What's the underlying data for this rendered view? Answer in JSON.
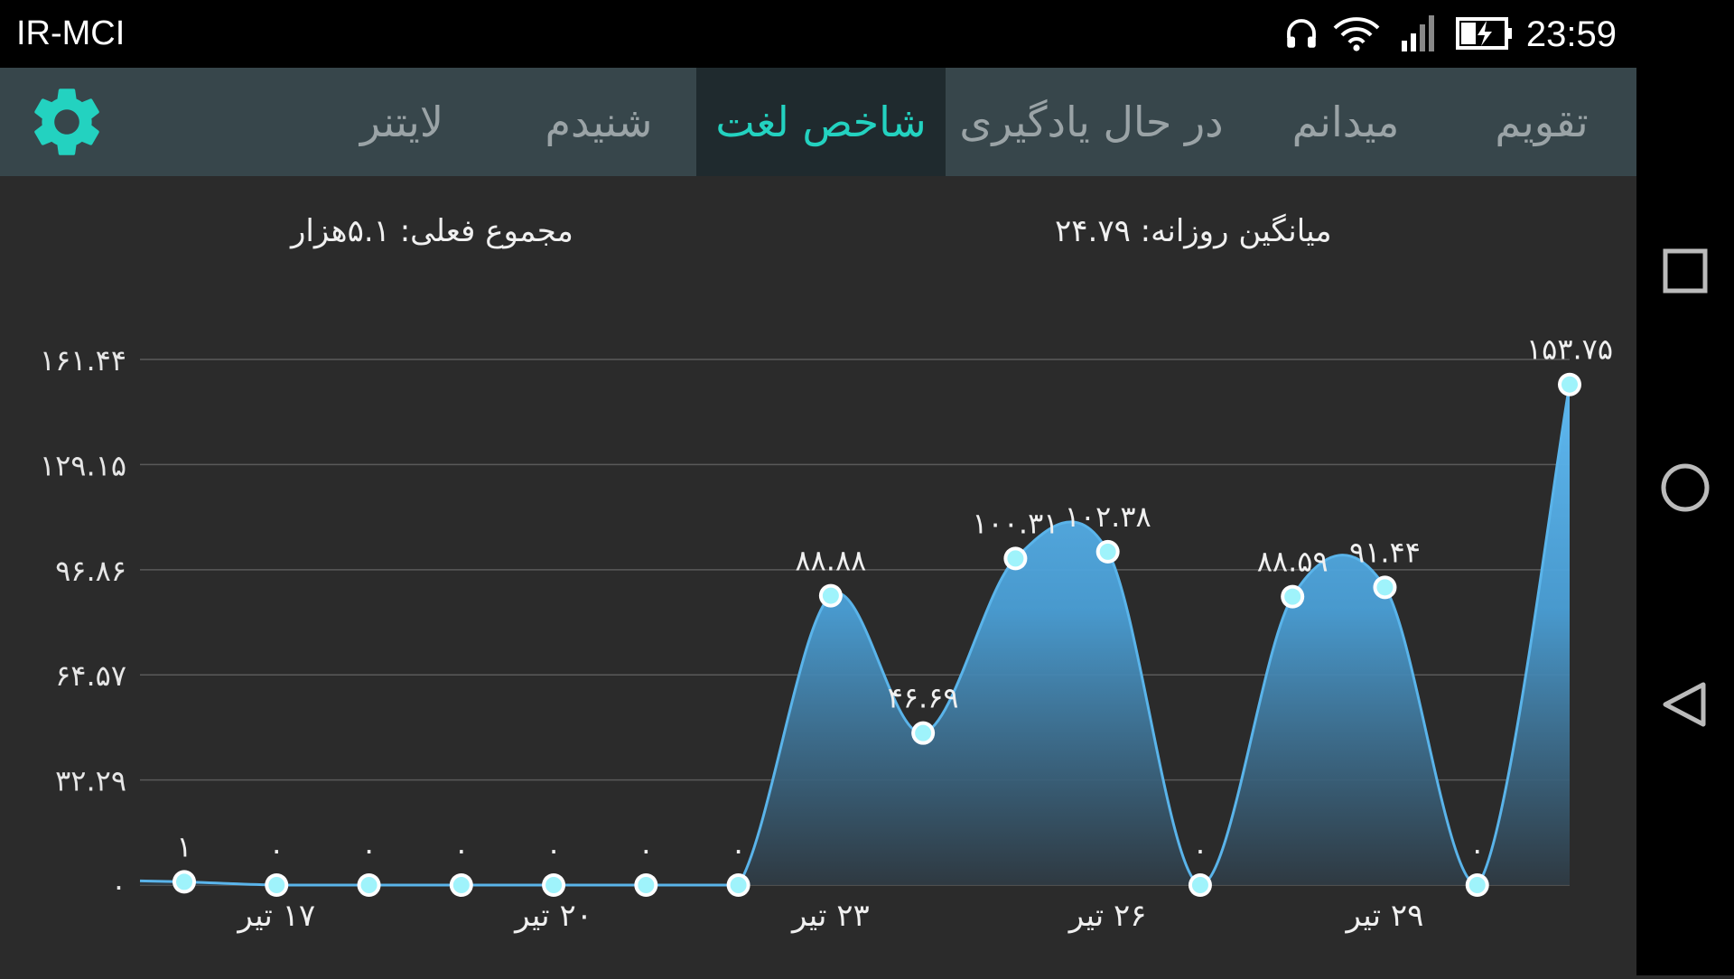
{
  "status_bar": {
    "carrier": "IR-MCI",
    "time": "23:59",
    "icons": [
      "headphones-icon",
      "wifi-icon",
      "signal-icon",
      "battery-charging-icon"
    ]
  },
  "tabs": [
    {
      "label": "تقویم",
      "active": false
    },
    {
      "label": "میدانم",
      "active": false
    },
    {
      "label": "در حال یادگیری",
      "active": false
    },
    {
      "label": "شاخص لغت",
      "active": true
    },
    {
      "label": "شنیدم",
      "active": false
    },
    {
      "label": "لایتنر",
      "active": false
    }
  ],
  "settings_icon": "gear-icon",
  "stats": {
    "daily_average": "میانگین روزانه: ۲۴.۷۹",
    "current_total": "مجموع فعلی: ۵.۱هزار"
  },
  "colors": {
    "accent": "#23d2c0",
    "tab_bar": "#37464b",
    "active_tab": "#1f2a2e",
    "background": "#2b2b2b",
    "line": "#5ab4ea",
    "point_fill": "#9ff3fb"
  },
  "nav_bar": {
    "icons": [
      "recent-apps-icon",
      "home-icon",
      "back-icon"
    ]
  },
  "chart_data": {
    "type": "area",
    "ylim": [
      0,
      161.44
    ],
    "y_ticks": [
      0,
      32.29,
      64.57,
      96.86,
      129.15,
      161.44
    ],
    "y_tick_labels": [
      "۰",
      "۳۲.۲۹",
      "۶۴.۵۷",
      "۹۶.۸۶",
      "۱۲۹.۱۵",
      "۱۶۱.۴۴"
    ],
    "x": [
      16,
      17,
      18,
      19,
      20,
      21,
      22,
      23,
      24,
      25,
      26,
      27,
      28,
      29,
      30,
      31
    ],
    "values": [
      1,
      0,
      0,
      0,
      0,
      0,
      0,
      88.88,
      46.69,
      100.31,
      102.38,
      0,
      88.59,
      91.44,
      0,
      153.75
    ],
    "point_labels": [
      "۱",
      "۰",
      "۰",
      "۰",
      "۰",
      "۰",
      "۰",
      "۸۸.۸۸",
      "۴۶.۶۹",
      "۱۰۰.۳۱",
      "۱۰۲.۳۸",
      "۰",
      "۸۸.۵۹",
      "۹۱.۴۴",
      "۰",
      "۱۵۳.۷۵"
    ],
    "x_ticks": [
      17,
      20,
      23,
      26,
      29
    ],
    "x_tick_labels": [
      "۱۷ تیر",
      "۲۰ تیر",
      "۲۳ تیر",
      "۲۶ تیر",
      "۲۹ تیر"
    ],
    "grid": true
  }
}
